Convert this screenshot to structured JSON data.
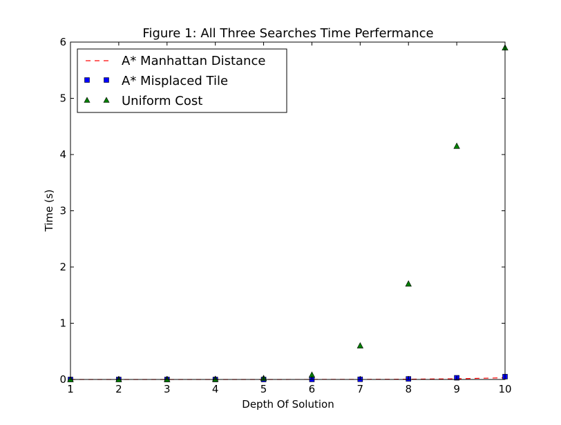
{
  "chart_data": {
    "type": "line",
    "title": "Figure 1: All Three Searches Time Perfermance",
    "xlabel": "Depth Of Solution",
    "ylabel": "Time (s)",
    "xlim": [
      1,
      10
    ],
    "ylim": [
      0,
      6
    ],
    "xticks": [
      "1",
      "2",
      "3",
      "4",
      "5",
      "6",
      "7",
      "8",
      "9",
      "10"
    ],
    "yticks": [
      "0",
      "1",
      "2",
      "3",
      "4",
      "5",
      "6"
    ],
    "grid": false,
    "legend_position": "top-left",
    "x": [
      1,
      2,
      3,
      4,
      5,
      6,
      7,
      8,
      9,
      10
    ],
    "series": [
      {
        "name": "A* Manhattan Distance",
        "style": "dashed-line",
        "color": "#ff0000",
        "values": [
          0.0,
          0.0,
          0.0,
          0.0,
          0.0,
          0.001,
          0.002,
          0.005,
          0.012,
          0.03
        ]
      },
      {
        "name": "A* Misplaced Tile",
        "style": "square-markers",
        "color": "#0000ff",
        "values": [
          0.0,
          0.0,
          0.0,
          0.0,
          0.0,
          0.001,
          0.003,
          0.01,
          0.03,
          0.05
        ]
      },
      {
        "name": "Uniform Cost",
        "style": "triangle-markers",
        "color": "#007f00",
        "values": [
          0.0,
          0.0,
          0.001,
          0.005,
          0.02,
          0.08,
          0.6,
          1.7,
          4.15,
          5.9
        ]
      }
    ]
  }
}
